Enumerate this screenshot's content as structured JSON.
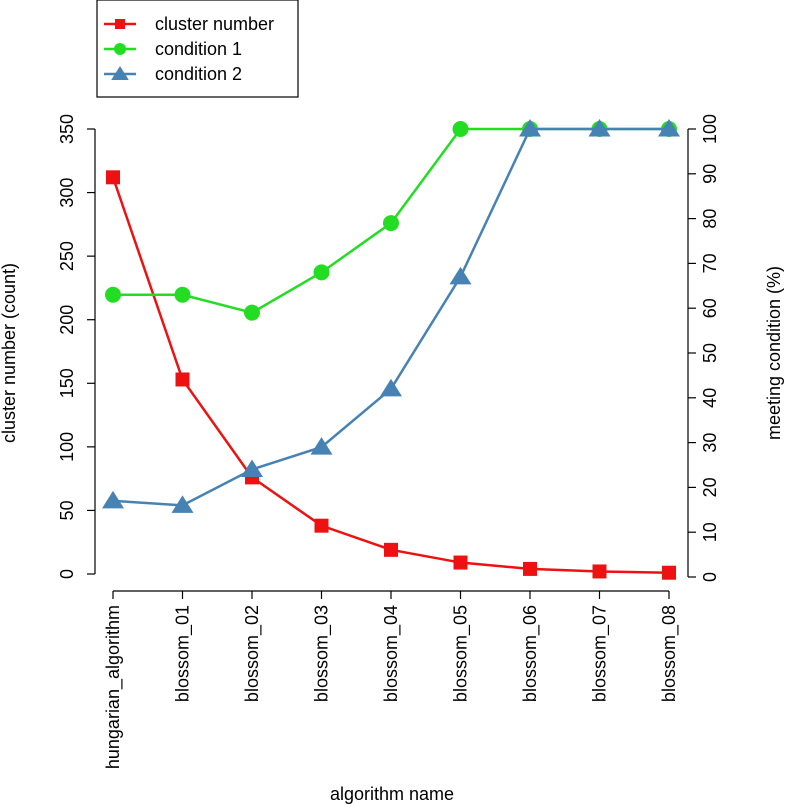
{
  "chart_data": {
    "type": "line",
    "categories": [
      "hungarian_algorithm",
      "blossom_01",
      "blossom_02",
      "blossom_03",
      "blossom_04",
      "blossom_05",
      "blossom_06",
      "blossom_07",
      "blossom_08"
    ],
    "xlabel": "algorithm name",
    "ylabel_left": "cluster number (count)",
    "ylabel_right": "meeting condition (%)",
    "ylim_left": [
      0,
      350
    ],
    "yticks_left": [
      0,
      50,
      100,
      150,
      200,
      250,
      300,
      350
    ],
    "ylim_right": [
      0,
      100
    ],
    "yticks_right": [
      0,
      10,
      20,
      30,
      40,
      50,
      60,
      70,
      80,
      90,
      100
    ],
    "legend_position": "top-left",
    "grid": false,
    "series": [
      {
        "name": "cluster number",
        "axis": "left",
        "color": "#ee1111",
        "marker": "square",
        "values": [
          312,
          153,
          76,
          38,
          19,
          9,
          4,
          2,
          1
        ]
      },
      {
        "name": "condition 1",
        "axis": "right",
        "color": "#22dd22",
        "marker": "circle",
        "values": [
          63,
          63,
          59,
          68,
          79,
          100,
          100,
          100,
          100
        ]
      },
      {
        "name": "condition 2",
        "axis": "right",
        "color": "#4682b4",
        "marker": "triangle",
        "values": [
          17,
          16,
          24,
          29,
          42,
          67,
          100,
          100,
          100
        ]
      }
    ]
  }
}
